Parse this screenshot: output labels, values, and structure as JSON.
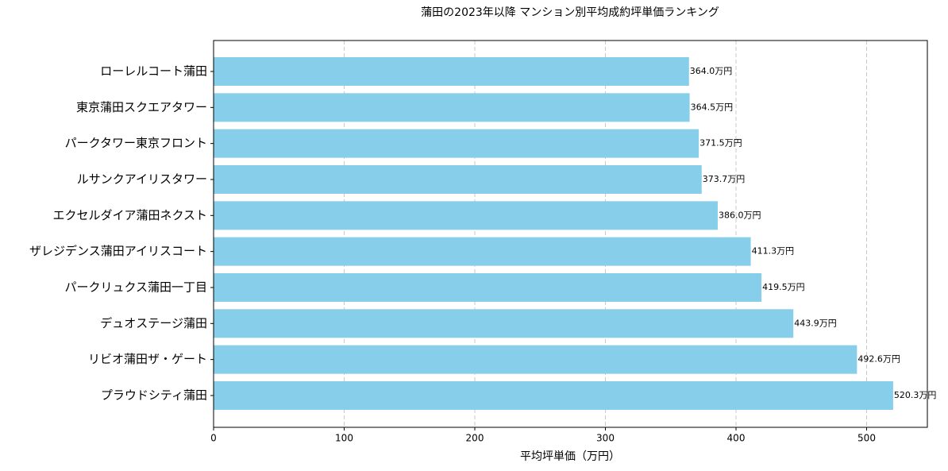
{
  "chart_data": {
    "type": "bar",
    "orientation": "horizontal",
    "title": "蒲田の2023年以降 マンション別平均成約坪単価ランキング",
    "xlabel": "平均坪単価（万円）",
    "categories": [
      "ローレルコート蒲田",
      "東京蒲田スクエアタワー",
      "パークタワー東京フロント",
      "ルサンクアイリスタワー",
      "エクセルダイア蒲田ネクスト",
      "ザレジデンス蒲田アイリスコート",
      "パークリュクス蒲田一丁目",
      "デュオステージ蒲田",
      "リビオ蒲田ザ・ゲート",
      "プラウドシティ蒲田"
    ],
    "values": [
      364.0,
      364.5,
      371.5,
      373.7,
      386.0,
      411.3,
      419.5,
      443.9,
      492.6,
      520.3
    ],
    "value_labels": [
      "364.0万円",
      "364.5万円",
      "371.5万円",
      "373.7万円",
      "386.0万円",
      "411.3万円",
      "419.5万円",
      "443.9万円",
      "492.6万円",
      "520.3万円"
    ],
    "color": "#87ceeb",
    "xlim": [
      0,
      546.5
    ],
    "xticks": [
      0,
      100,
      200,
      300,
      400,
      500
    ],
    "grid": true
  }
}
